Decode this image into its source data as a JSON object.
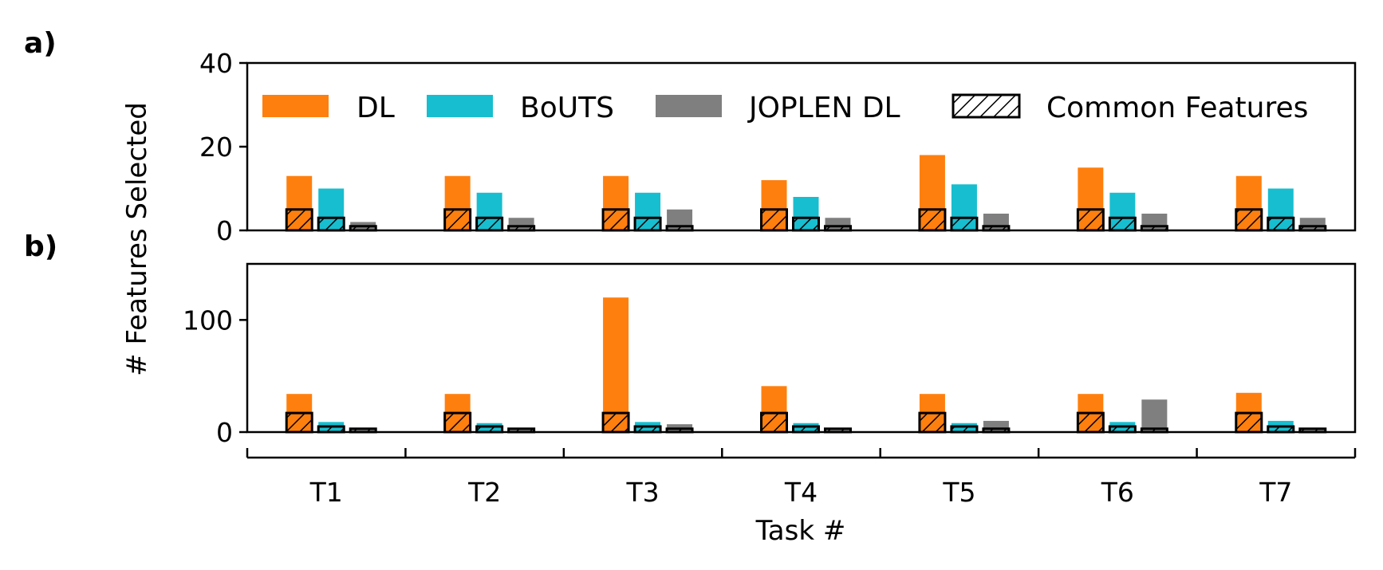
{
  "chart_data": [
    {
      "panel_label": "a)",
      "type": "bar",
      "categories": [
        "T1",
        "T2",
        "T3",
        "T4",
        "T5",
        "T6",
        "T7"
      ],
      "ylim": [
        0,
        40
      ],
      "yticks": [
        0,
        20,
        40
      ],
      "series": [
        {
          "name": "DL",
          "color": "#ff7f0e",
          "values": [
            13,
            13,
            13,
            12,
            18,
            15,
            13
          ]
        },
        {
          "name": "BoUTS",
          "color": "#17becf",
          "values": [
            10,
            9,
            9,
            8,
            11,
            9,
            10
          ]
        },
        {
          "name": "JOPLEN DL",
          "color": "#7f7f7f",
          "values": [
            2,
            3,
            5,
            3,
            4,
            4,
            3
          ]
        }
      ],
      "common_features": [
        {
          "series": "DL",
          "values": [
            5,
            5,
            5,
            5,
            5,
            5,
            5
          ]
        },
        {
          "series": "BoUTS",
          "values": [
            3,
            3,
            3,
            3,
            3,
            3,
            3
          ]
        },
        {
          "series": "JOPLEN DL",
          "values": [
            1,
            1,
            1,
            1,
            1,
            1,
            1
          ]
        }
      ],
      "legend": {
        "placement": "top",
        "entries": [
          "DL",
          "BoUTS",
          "JOPLEN DL",
          "Common Features"
        ]
      }
    },
    {
      "panel_label": "b)",
      "type": "bar",
      "categories": [
        "T1",
        "T2",
        "T3",
        "T4",
        "T5",
        "T6",
        "T7"
      ],
      "ylim": [
        0,
        150
      ],
      "yticks": [
        0,
        100
      ],
      "series": [
        {
          "name": "DL",
          "color": "#ff7f0e",
          "values": [
            34,
            34,
            120,
            41,
            34,
            34,
            35
          ]
        },
        {
          "name": "BoUTS",
          "color": "#17becf",
          "values": [
            9,
            8,
            9,
            8,
            8,
            9,
            10
          ]
        },
        {
          "name": "JOPLEN DL",
          "color": "#7f7f7f",
          "values": [
            3,
            3,
            7,
            3,
            10,
            29,
            3
          ]
        }
      ],
      "common_features": [
        {
          "series": "DL",
          "values": [
            17,
            17,
            17,
            17,
            17,
            17,
            17
          ]
        },
        {
          "series": "BoUTS",
          "values": [
            5,
            5,
            5,
            5,
            5,
            5,
            5
          ]
        },
        {
          "series": "JOPLEN DL",
          "values": [
            3,
            3,
            3,
            3,
            3,
            3,
            3
          ]
        }
      ]
    }
  ],
  "ylabel": "# Features Selected",
  "xlabel": "Task #"
}
